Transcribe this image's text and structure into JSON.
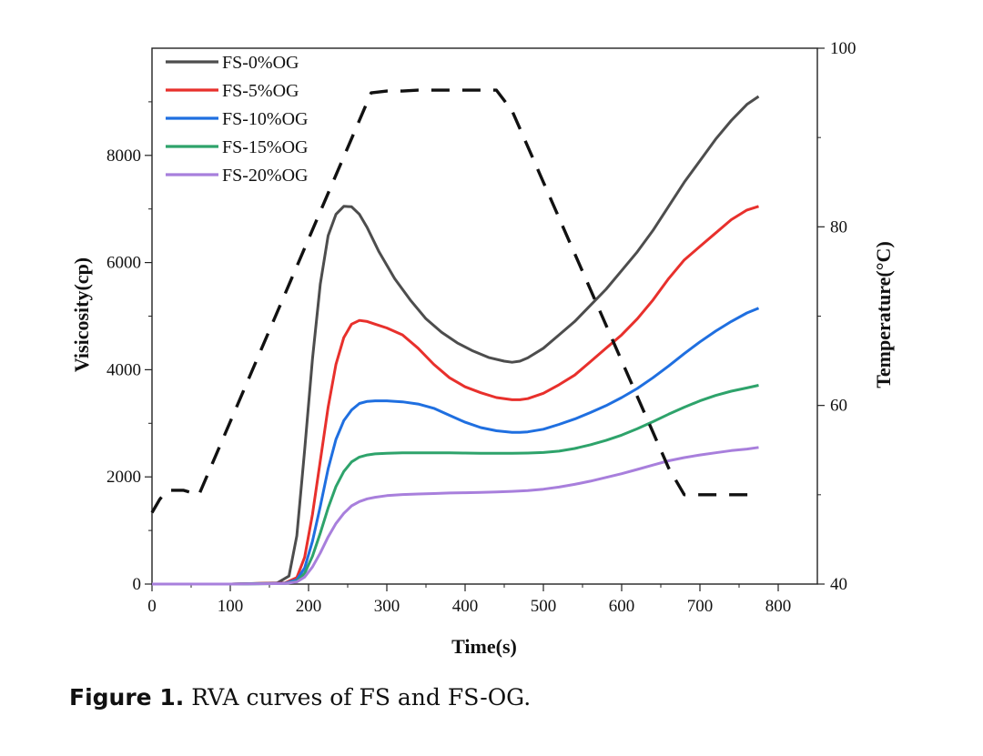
{
  "chart_data": {
    "type": "line",
    "xlabel": "Time(s)",
    "ylabel": "Visicosity(cp)",
    "y2label": "Temperature(°C)",
    "xlim": [
      0,
      850
    ],
    "ylim": [
      0,
      10000
    ],
    "y2lim": [
      40,
      100
    ],
    "xticks": [
      0,
      100,
      200,
      300,
      400,
      500,
      600,
      700,
      800
    ],
    "yticks": [
      0,
      2000,
      4000,
      6000,
      8000
    ],
    "y2ticks": [
      40,
      60,
      80,
      100
    ],
    "legend_position": "top-left",
    "series": [
      {
        "name": "FS-0%OG",
        "color": "#4d4d4d",
        "x": [
          0,
          100,
          160,
          175,
          185,
          195,
          205,
          215,
          225,
          235,
          245,
          255,
          265,
          275,
          290,
          310,
          330,
          350,
          370,
          390,
          410,
          430,
          450,
          460,
          470,
          480,
          500,
          520,
          540,
          560,
          580,
          600,
          620,
          640,
          660,
          680,
          700,
          720,
          740,
          760,
          775
        ],
        "values": [
          0,
          0,
          20,
          150,
          900,
          2500,
          4200,
          5600,
          6500,
          6900,
          7050,
          7040,
          6900,
          6650,
          6200,
          5700,
          5300,
          4950,
          4700,
          4500,
          4350,
          4230,
          4160,
          4140,
          4160,
          4220,
          4400,
          4650,
          4900,
          5200,
          5500,
          5850,
          6200,
          6600,
          7050,
          7500,
          7900,
          8300,
          8650,
          8950,
          9100
        ]
      },
      {
        "name": "FS-5%OG",
        "color": "#e8302c",
        "x": [
          0,
          100,
          170,
          185,
          195,
          205,
          215,
          225,
          235,
          245,
          255,
          265,
          275,
          285,
          300,
          320,
          340,
          360,
          380,
          400,
          420,
          440,
          460,
          470,
          480,
          500,
          520,
          540,
          560,
          580,
          600,
          620,
          640,
          660,
          680,
          700,
          720,
          740,
          760,
          775
        ],
        "values": [
          0,
          0,
          20,
          120,
          500,
          1300,
          2300,
          3300,
          4100,
          4600,
          4850,
          4920,
          4900,
          4850,
          4780,
          4650,
          4400,
          4100,
          3850,
          3680,
          3570,
          3480,
          3440,
          3440,
          3460,
          3560,
          3720,
          3900,
          4150,
          4400,
          4650,
          4950,
          5300,
          5700,
          6050,
          6300,
          6550,
          6800,
          6980,
          7050
        ]
      },
      {
        "name": "FS-10%OG",
        "color": "#1f6fe0",
        "x": [
          0,
          100,
          170,
          185,
          195,
          205,
          215,
          225,
          235,
          245,
          255,
          265,
          275,
          285,
          300,
          320,
          340,
          360,
          380,
          400,
          420,
          440,
          460,
          470,
          480,
          500,
          520,
          540,
          560,
          580,
          600,
          620,
          640,
          660,
          680,
          700,
          720,
          740,
          760,
          775
        ],
        "values": [
          0,
          0,
          15,
          80,
          300,
          800,
          1450,
          2150,
          2700,
          3050,
          3250,
          3370,
          3410,
          3420,
          3420,
          3400,
          3360,
          3280,
          3150,
          3020,
          2920,
          2860,
          2830,
          2830,
          2840,
          2890,
          2980,
          3080,
          3200,
          3330,
          3480,
          3650,
          3850,
          4070,
          4300,
          4520,
          4720,
          4900,
          5060,
          5150
        ]
      },
      {
        "name": "FS-15%OG",
        "color": "#2ea36b",
        "x": [
          0,
          100,
          170,
          185,
          195,
          205,
          215,
          225,
          235,
          245,
          255,
          265,
          275,
          285,
          300,
          320,
          340,
          360,
          380,
          400,
          420,
          440,
          460,
          480,
          500,
          520,
          540,
          560,
          580,
          600,
          620,
          640,
          660,
          680,
          700,
          720,
          740,
          760,
          775
        ],
        "values": [
          0,
          0,
          10,
          50,
          200,
          520,
          950,
          1420,
          1820,
          2100,
          2280,
          2370,
          2410,
          2430,
          2440,
          2450,
          2450,
          2450,
          2450,
          2445,
          2440,
          2440,
          2440,
          2445,
          2455,
          2480,
          2530,
          2600,
          2680,
          2780,
          2900,
          3030,
          3170,
          3300,
          3420,
          3520,
          3600,
          3660,
          3710
        ]
      },
      {
        "name": "FS-20%OG",
        "color": "#a87fdc",
        "x": [
          0,
          100,
          170,
          185,
          195,
          205,
          215,
          225,
          235,
          245,
          255,
          265,
          275,
          285,
          300,
          320,
          340,
          360,
          380,
          400,
          420,
          440,
          460,
          480,
          500,
          520,
          540,
          560,
          580,
          600,
          620,
          640,
          660,
          680,
          700,
          720,
          740,
          760,
          775
        ],
        "values": [
          0,
          0,
          10,
          40,
          130,
          320,
          580,
          880,
          1130,
          1320,
          1460,
          1540,
          1590,
          1620,
          1650,
          1670,
          1680,
          1690,
          1700,
          1705,
          1710,
          1720,
          1730,
          1745,
          1770,
          1810,
          1860,
          1920,
          1990,
          2060,
          2140,
          2220,
          2300,
          2360,
          2410,
          2450,
          2490,
          2520,
          2550
        ]
      },
      {
        "name": "Temperature",
        "axis": "y2",
        "color": "#111111",
        "dashed": true,
        "x": [
          0,
          10,
          20,
          40,
          60,
          280,
          300,
          320,
          340,
          360,
          380,
          400,
          420,
          440,
          460,
          480,
          500,
          520,
          540,
          560,
          580,
          600,
          620,
          640,
          660,
          680,
          700,
          720,
          740,
          760,
          770
        ],
        "values": [
          48,
          49.5,
          50.5,
          50.5,
          50,
          95,
          95.2,
          95.2,
          95.3,
          95.3,
          95.3,
          95.3,
          95.3,
          95.3,
          93,
          89,
          85,
          81,
          77,
          73,
          69,
          65,
          61,
          57,
          53,
          50,
          50,
          50,
          50,
          50,
          50
        ]
      }
    ]
  },
  "caption": {
    "label": "Figure 1.",
    "text": "RVA curves of FS and FS-OG."
  }
}
